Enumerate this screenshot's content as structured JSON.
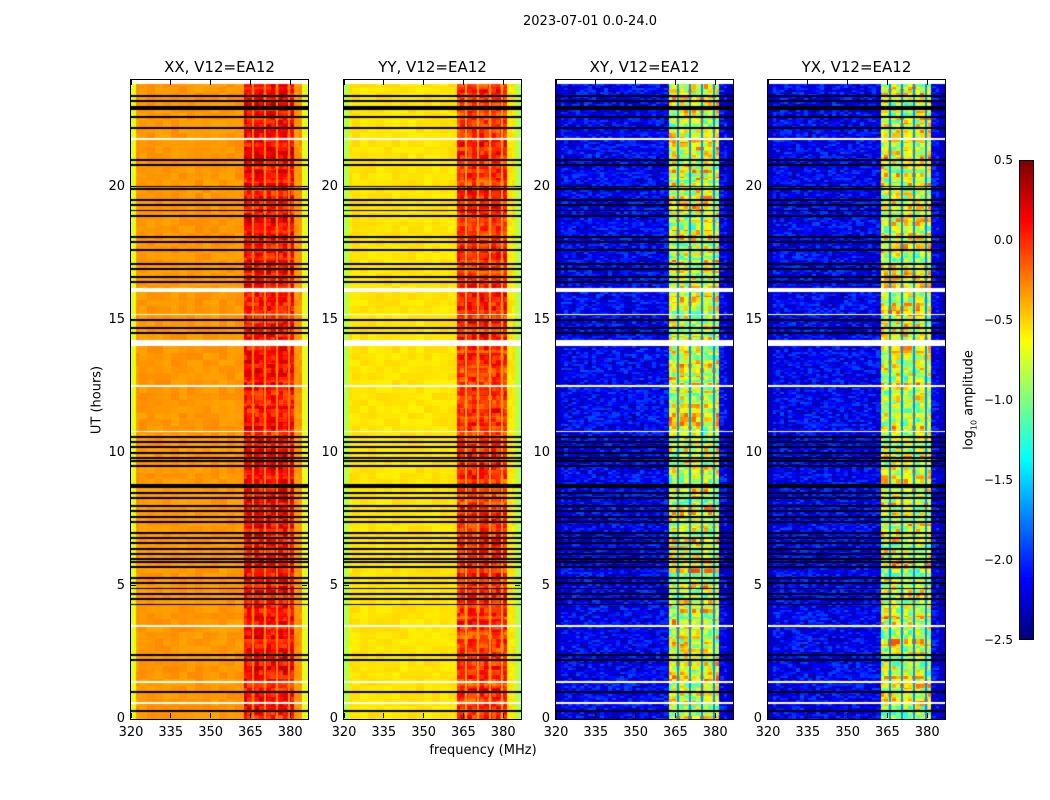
{
  "chart_data": {
    "type": "heatmap",
    "title": "2023-07-01 0.0-24.0",
    "xlabel": "frequency (MHz)",
    "ylabel": "UT (hours)",
    "xlim": [
      320,
      386.7
    ],
    "ylim": [
      0,
      24
    ],
    "xticks": [
      "320",
      "335",
      "350",
      "365",
      "380"
    ],
    "xtick_values": [
      320,
      335,
      350,
      365,
      380
    ],
    "yticks": [
      "0",
      "5",
      "10",
      "15",
      "20"
    ],
    "ytick_values": [
      0,
      5,
      10,
      15,
      20
    ],
    "colormap": "jet",
    "colorbar": {
      "label_prefix": "log",
      "label_sub": "10",
      "label_suffix": " amplitude",
      "range": [
        -2.5,
        0.5
      ],
      "ticks": [
        "0.5",
        "0.0",
        "−0.5",
        "−1.0",
        "−1.5",
        "−2.0",
        "−2.5"
      ],
      "tick_values": [
        0.5,
        0.0,
        -0.5,
        -1.0,
        -1.5,
        -2.0,
        -2.5
      ]
    },
    "panels": [
      {
        "title": "XX, V12=EA12",
        "baseline": -0.32,
        "edge_level": -0.7,
        "band_mhz": [
          362.5,
          381.5
        ],
        "band_level": 0.1,
        "band_gaps_mhz": [
          366,
          370.5,
          375,
          379.5
        ],
        "gap_level": -0.25
      },
      {
        "title": "YY, V12=EA12",
        "baseline": -0.55,
        "edge_level": -0.85,
        "band_mhz": [
          362.5,
          381.5
        ],
        "band_level": 0.0,
        "band_gaps_mhz": [
          366,
          370.5,
          375,
          379.5
        ],
        "gap_level": -0.35
      },
      {
        "title": "XY, V12=EA12",
        "baseline": -2.15,
        "edge_level": -2.3,
        "band_mhz": [
          362.5,
          381.5
        ],
        "band_level": -0.7,
        "band_gaps_mhz": [
          366,
          370.5,
          375,
          379.5
        ],
        "gap_level": -1.7
      },
      {
        "title": "YX, V12=EA12",
        "baseline": -2.15,
        "edge_level": -2.3,
        "band_mhz": [
          362.5,
          381.5
        ],
        "band_level": -0.7,
        "band_gaps_mhz": [
          366,
          370.5,
          375,
          379.5
        ],
        "gap_level": -1.7
      }
    ],
    "flagged_hours": [
      23.4,
      23.2,
      23.0,
      22.9,
      22.6,
      22.2,
      21.0,
      20.8,
      20.0,
      19.9,
      19.5,
      19.3,
      19.1,
      18.9,
      18.1,
      17.9,
      17.6,
      17.1,
      16.9,
      16.6,
      16.4,
      15.0,
      14.7,
      14.5,
      10.6,
      10.4,
      10.2,
      10.0,
      9.8,
      9.7,
      9.5,
      8.8,
      8.7,
      8.5,
      8.3,
      8.0,
      7.8,
      7.6,
      7.4,
      7.0,
      6.8,
      6.6,
      6.4,
      6.2,
      6.0,
      5.9,
      5.7,
      5.3,
      5.1,
      4.9,
      4.7,
      4.5,
      4.3,
      2.4,
      2.2,
      1.0,
      0.3
    ],
    "missing_hours": [
      [
        23.85,
        24.0
      ],
      [
        21.75,
        21.82
      ],
      [
        16.05,
        16.2
      ],
      [
        15.17,
        15.23
      ],
      [
        14.0,
        14.25
      ],
      [
        12.47,
        12.53
      ],
      [
        10.77,
        10.83
      ],
      [
        3.47,
        3.53
      ],
      [
        1.37,
        1.43
      ],
      [
        0.57,
        0.62
      ]
    ]
  }
}
